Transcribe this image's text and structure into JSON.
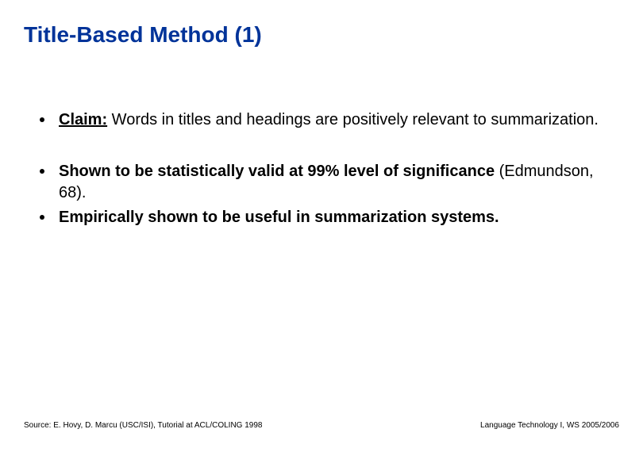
{
  "title": "Title-Based Method (1)",
  "bullets": [
    {
      "prefix": "Claim:",
      "prefix_bold": true,
      "prefix_underline": true,
      "text": " Words in titles and headings are positively relevant to summarization.",
      "text_bold": false
    },
    {
      "prefix": "",
      "prefix_bold": false,
      "prefix_underline": false,
      "text": "Shown to be statistically valid at 99% level of significance",
      "text_bold": true,
      "suffix": " (Edmundson, 68).",
      "suffix_bold": false
    },
    {
      "prefix": "",
      "prefix_bold": false,
      "prefix_underline": false,
      "text": "Empirically shown to be useful in summarization systems.",
      "text_bold": true
    }
  ],
  "footer_left": "Source: E. Hovy, D. Marcu (USC/ISI), Tutorial at ACL/COLING 1998",
  "footer_right": "Language Technology I, WS 2005/2006",
  "colors": {
    "title_color": "#003399",
    "text_color": "#000000",
    "background": "#ffffff",
    "bullet_color": "#000000"
  },
  "typography": {
    "title_fontsize": 28,
    "body_fontsize": 20,
    "footer_fontsize": 10,
    "font_family": "Arial"
  }
}
